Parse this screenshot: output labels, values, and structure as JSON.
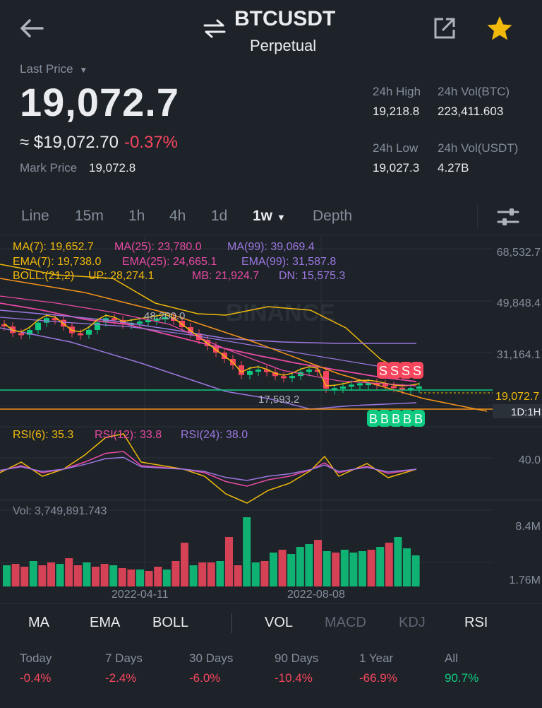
{
  "header": {
    "symbol": "BTCUSDT",
    "contract_type": "Perpetual",
    "icons": [
      "back-arrow-icon",
      "swap-icon",
      "share-icon",
      "star-icon"
    ],
    "star_color": "#f0b90b"
  },
  "ticker": {
    "last_price_label": "Last Price",
    "last_price": "19,072.7",
    "usd_price": "≈ $19,072.70",
    "change_pct": "-0.37%",
    "mark_price_label": "Mark Price",
    "mark_price": "19,072.8",
    "high_24h_label": "24h High",
    "high_24h": "19,218.8",
    "vol_btc_label": "24h Vol(BTC)",
    "vol_btc": "223,411.603",
    "low_24h_label": "24h Low",
    "low_24h": "19,027.3",
    "vol_usdt_label": "24h Vol(USDT)",
    "vol_usdt": "4.27B"
  },
  "intervals": {
    "items": [
      "Line",
      "15m",
      "1h",
      "4h",
      "1d",
      "1w",
      "Depth"
    ],
    "active": "1w"
  },
  "chart": {
    "watermark": "BINANCE",
    "ma_legend": {
      "ma7": "MA(7): 19,652.7",
      "ma25": "MA(25): 23,780.0",
      "ma99": "MA(99): 39,069.4"
    },
    "ema_legend": {
      "ema7": "EMA(7): 19,738.0",
      "ema25": "EMA(25): 24,665.1",
      "ema99": "EMA(99): 31,587.8"
    },
    "boll_legend": {
      "boll": "BOLL:(21,2)",
      "up": "UP: 28,274.1",
      "mb": "MB: 21,924.7",
      "dn": "DN: 15,575.3"
    },
    "price_axis": [
      "68,532.7",
      "49,848.4",
      "31,164.1"
    ],
    "current_price_tag": "19,072.7",
    "interval_tag": "1D:1H",
    "high_marker": "48,200.0",
    "low_marker": "17,593.2",
    "sell_markers": [
      "S",
      "S",
      "S",
      "S"
    ],
    "buy_markers": [
      "B",
      "B",
      "B",
      "B",
      "B"
    ],
    "rsi_legend": {
      "rsi6": "RSI(6): 35.3",
      "rsi12": "RSI(12): 33.8",
      "rsi24": "RSI(24): 38.0"
    },
    "rsi_axis": "40.0",
    "vol_legend": "Vol: 3,749,891.743",
    "vol_axis": [
      "8.4M",
      "1.76M"
    ],
    "dates": [
      "2022-04-11",
      "2022-08-08"
    ],
    "colors": {
      "up": "#0ecb81",
      "down": "#f6465d",
      "ma7": "#f0b90b",
      "ma25": "#e84aa4",
      "ma99": "#9b77e0",
      "boll": "#f0b90b"
    }
  },
  "indicators": {
    "main": [
      "MA",
      "EMA",
      "BOLL"
    ],
    "sub": [
      "VOL",
      "MACD",
      "KDJ",
      "RSI"
    ],
    "active_sub": [
      "VOL",
      "RSI"
    ]
  },
  "performance": [
    {
      "label": "Today",
      "value": "-0.4%",
      "trend": "neg"
    },
    {
      "label": "7 Days",
      "value": "-2.4%",
      "trend": "neg"
    },
    {
      "label": "30 Days",
      "value": "-6.0%",
      "trend": "neg"
    },
    {
      "label": "90 Days",
      "value": "-10.4%",
      "trend": "neg"
    },
    {
      "label": "1 Year",
      "value": "-66.9%",
      "trend": "neg"
    },
    {
      "label": "All",
      "value": "90.7%",
      "trend": "pos"
    }
  ]
}
